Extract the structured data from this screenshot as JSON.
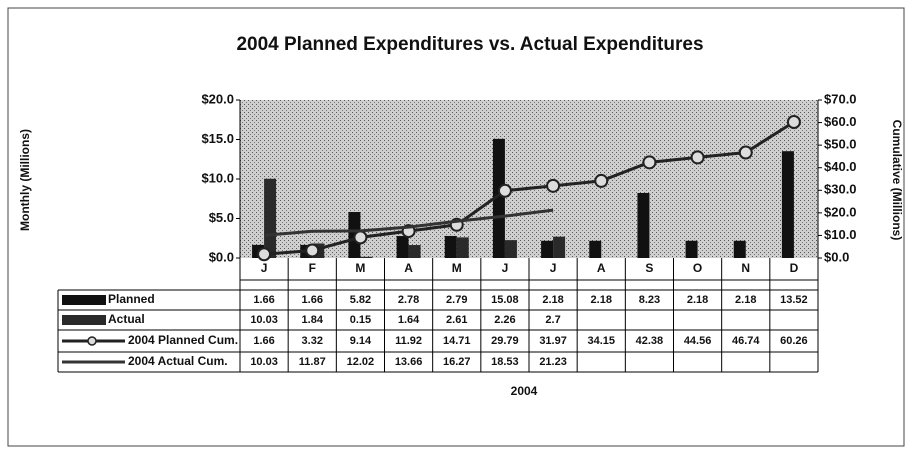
{
  "chart_data": {
    "type": "bar",
    "title": "2004 Planned Expenditures vs. Actual Expenditures",
    "x_label": "2004",
    "y_label": "Monthly (Millions)",
    "y2_label": "Cumulative (Millions)",
    "categories": [
      "J",
      "F",
      "M",
      "A",
      "M",
      "J",
      "J",
      "A",
      "S",
      "O",
      "N",
      "D"
    ],
    "series": [
      {
        "name": "Planned",
        "type": "bar",
        "color": "#111111",
        "values": [
          1.66,
          1.66,
          5.82,
          2.78,
          2.79,
          15.08,
          2.18,
          2.18,
          8.23,
          2.18,
          2.18,
          13.52
        ]
      },
      {
        "name": "Actual",
        "type": "bar",
        "color": "#2a2a2a",
        "values": [
          10.03,
          1.84,
          0.15,
          1.64,
          2.61,
          2.26,
          2.7,
          null,
          null,
          null,
          null,
          null
        ]
      },
      {
        "name": "2004 Planned Cum.",
        "type": "line",
        "axis": "y2",
        "color": "#222222",
        "values": [
          1.66,
          3.32,
          9.14,
          11.92,
          14.71,
          29.79,
          31.97,
          34.15,
          42.38,
          44.56,
          46.74,
          60.26
        ]
      },
      {
        "name": "2004 Actual Cum.",
        "type": "line",
        "axis": "y2",
        "color": "#333333",
        "values": [
          10.03,
          11.87,
          12.02,
          13.66,
          16.27,
          18.53,
          21.23,
          null,
          null,
          null,
          null,
          null
        ]
      }
    ],
    "ylim": [
      0,
      20
    ],
    "yticks": [
      {
        "value": 0,
        "label": "$0.0"
      },
      {
        "value": 5,
        "label": "$5.0"
      },
      {
        "value": 10,
        "label": "$10.0"
      },
      {
        "value": 15,
        "label": "$15.0"
      },
      {
        "value": 20,
        "label": "$20.0"
      }
    ],
    "y2lim": [
      0,
      70
    ],
    "y2ticks": [
      {
        "value": 0,
        "label": "$0.0"
      },
      {
        "value": 10,
        "label": "$10.0"
      },
      {
        "value": 20,
        "label": "$20.0"
      },
      {
        "value": 30,
        "label": "$30.0"
      },
      {
        "value": 40,
        "label": "$40.0"
      },
      {
        "value": 50,
        "label": "$50.0"
      },
      {
        "value": 60,
        "label": "$60.0"
      },
      {
        "value": 70,
        "label": "$70.0"
      }
    ]
  }
}
